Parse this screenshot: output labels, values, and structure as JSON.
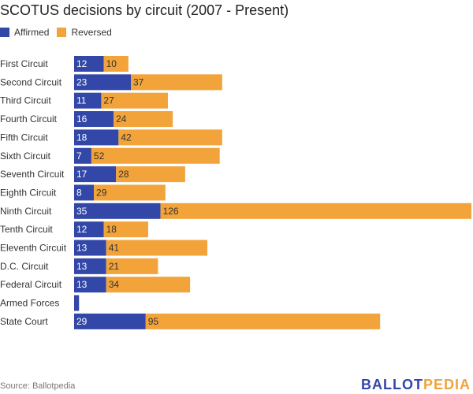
{
  "chart_data": {
    "type": "bar",
    "orientation": "horizontal",
    "stacked": true,
    "title": "SCOTUS decisions by circuit (2007 - Present)",
    "xlabel": "",
    "ylabel": "",
    "categories": [
      "First Circuit",
      "Second Circuit",
      "Third Circuit",
      "Fourth Circuit",
      "Fifth Circuit",
      "Sixth Circuit",
      "Seventh Circuit",
      "Eighth Circuit",
      "Ninth Circuit",
      "Tenth Circuit",
      "Eleventh Circuit",
      "D.C. Circuit",
      "Federal Circuit",
      "Armed Forces",
      "State Court"
    ],
    "series": [
      {
        "name": "Affirmed",
        "color": "#3247a8",
        "values": [
          12,
          23,
          11,
          16,
          18,
          7,
          17,
          8,
          35,
          12,
          13,
          13,
          13,
          2,
          29
        ]
      },
      {
        "name": "Reversed",
        "color": "#f2a33a",
        "values": [
          10,
          37,
          27,
          24,
          42,
          52,
          28,
          29,
          126,
          18,
          41,
          21,
          34,
          0,
          95
        ]
      }
    ],
    "xlim": [
      0,
      161
    ],
    "grid": false,
    "legend_position": "top-left",
    "source": "Source: Ballotpedia"
  },
  "brand": {
    "part1": "BALLOT",
    "part2": "PEDIA"
  }
}
